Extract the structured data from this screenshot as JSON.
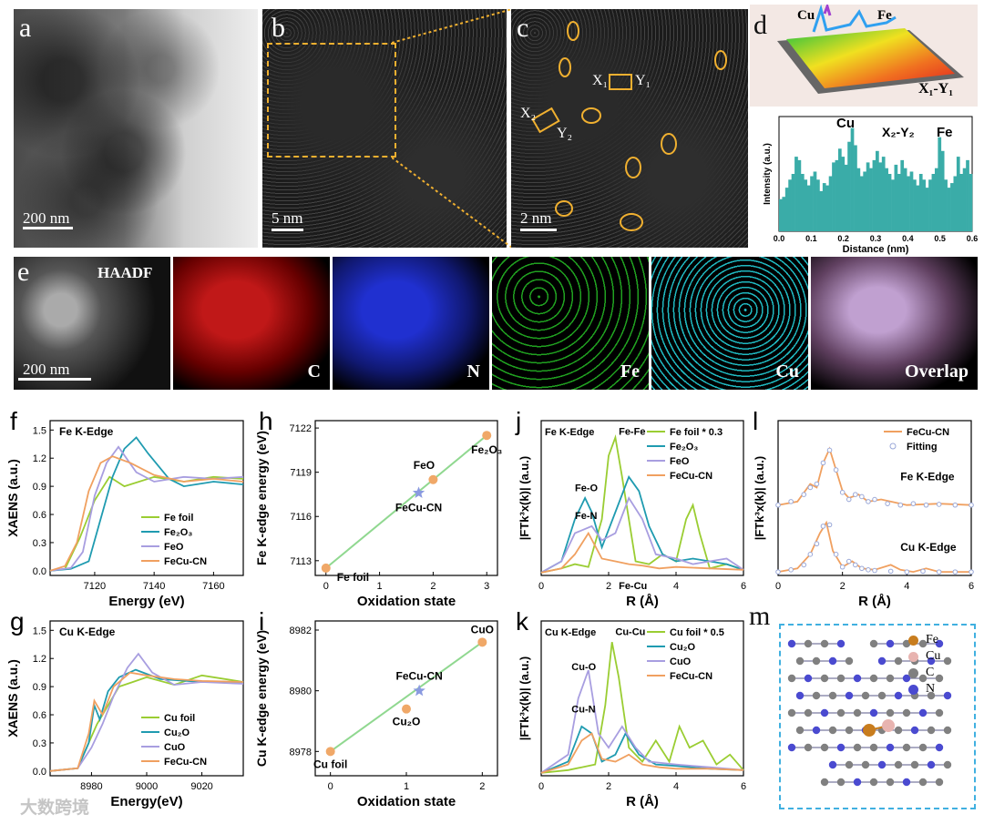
{
  "panels": {
    "a": {
      "letter": "a",
      "scale": "200 nm"
    },
    "b": {
      "letter": "b",
      "scale": "5 nm"
    },
    "c": {
      "letter": "c",
      "scale": "2 nm",
      "label1": "X₁",
      "label2": "Y₁",
      "label3": "X₂",
      "label4": "Y₂"
    },
    "d": {
      "letter": "d",
      "cu": "Cu",
      "fe": "Fe",
      "xy": "X₁-Y₁"
    },
    "e": {
      "letter": "e",
      "haadf": "HAADF",
      "scale": "200 nm",
      "maps": [
        "C",
        "N",
        "Fe",
        "Cu",
        "Overlap"
      ]
    }
  },
  "chart_data": [
    {
      "id": "d2",
      "type": "bar",
      "title": "X₂-Y₂",
      "annotations": [
        "Cu",
        "Fe"
      ],
      "xlabel": "Distance (nm)",
      "ylabel": "Intensity (a.u.)",
      "xlim": [
        0,
        0.6
      ],
      "xticks": [
        "0.0",
        "0.1",
        "0.2",
        "0.3",
        "0.4",
        "0.5",
        "0.6"
      ],
      "values": [
        0.28,
        0.3,
        0.38,
        0.45,
        0.5,
        0.65,
        0.62,
        0.5,
        0.45,
        0.4,
        0.48,
        0.52,
        0.45,
        0.35,
        0.42,
        0.4,
        0.48,
        0.6,
        0.62,
        0.72,
        0.65,
        0.58,
        0.78,
        0.9,
        0.75,
        0.55,
        0.48,
        0.52,
        0.6,
        0.55,
        0.62,
        0.7,
        0.6,
        0.65,
        0.55,
        0.5,
        0.45,
        0.58,
        0.5,
        0.62,
        0.55,
        0.48,
        0.52,
        0.45,
        0.4,
        0.5,
        0.45,
        0.38,
        0.45,
        0.5,
        0.55,
        0.82,
        0.7,
        0.45,
        0.38,
        0.42,
        0.48,
        0.65,
        0.5,
        0.55,
        0.62,
        0.5
      ]
    },
    {
      "id": "f",
      "letter": "f",
      "type": "line",
      "title": "Fe K-Edge",
      "xlabel": "Energy (eV)",
      "ylabel": "XAENS (a.u.)",
      "xlim": [
        7105,
        7170
      ],
      "ylim": [
        -0.05,
        1.6
      ],
      "xticks": [
        "7120",
        "7140",
        "7160"
      ],
      "yticks": [
        "0.0",
        "0.3",
        "0.6",
        "0.9",
        "1.2",
        "1.5"
      ],
      "series": [
        {
          "name": "Fe foil",
          "color": "#9acd32",
          "x": [
            7105,
            7110,
            7112,
            7115,
            7120,
            7125,
            7130,
            7140,
            7150,
            7160,
            7170
          ],
          "y": [
            0,
            0.02,
            0.15,
            0.35,
            0.75,
            1.0,
            0.9,
            1.0,
            0.95,
            1.0,
            0.98
          ]
        },
        {
          "name": "Fe₂O₃",
          "color": "#1f9bb0",
          "x": [
            7105,
            7112,
            7118,
            7122,
            7126,
            7130,
            7134,
            7138,
            7145,
            7150,
            7160,
            7170
          ],
          "y": [
            0,
            0.02,
            0.1,
            0.55,
            1.0,
            1.3,
            1.42,
            1.25,
            0.98,
            0.9,
            0.95,
            0.92
          ]
        },
        {
          "name": "FeO",
          "color": "#a89ee0",
          "x": [
            7105,
            7112,
            7116,
            7120,
            7124,
            7128,
            7134,
            7140,
            7150,
            7160,
            7170
          ],
          "y": [
            0,
            0.03,
            0.2,
            0.8,
            1.15,
            1.32,
            1.05,
            0.95,
            1.0,
            0.98,
            1.0
          ]
        },
        {
          "name": "FeCu-CN",
          "color": "#f0a060",
          "x": [
            7105,
            7110,
            7114,
            7118,
            7122,
            7126,
            7132,
            7140,
            7150,
            7160,
            7170
          ],
          "y": [
            0,
            0.05,
            0.3,
            0.85,
            1.15,
            1.22,
            1.15,
            1.02,
            0.95,
            0.98,
            0.95
          ]
        }
      ]
    },
    {
      "id": "g",
      "letter": "g",
      "type": "line",
      "title": "Cu K-Edge",
      "xlabel": "Energy(eV)",
      "ylabel": "XAENS (a.u.)",
      "xlim": [
        8965,
        9035
      ],
      "ylim": [
        -0.05,
        1.6
      ],
      "xticks": [
        "8980",
        "9000",
        "9020"
      ],
      "yticks": [
        "0.0",
        "0.3",
        "0.6",
        "0.9",
        "1.2",
        "1.5"
      ],
      "series": [
        {
          "name": "Cu foil",
          "color": "#9acd32",
          "x": [
            8965,
            8975,
            8979,
            8982,
            8986,
            8990,
            8995,
            9000,
            9010,
            9020,
            9035
          ],
          "y": [
            0,
            0.03,
            0.3,
            0.5,
            0.7,
            0.9,
            0.95,
            1.0,
            0.92,
            1.02,
            0.95
          ]
        },
        {
          "name": "Cu₂O",
          "color": "#1f9bb0",
          "x": [
            8965,
            8975,
            8979,
            8981,
            8983,
            8986,
            8990,
            8996,
            9005,
            9020,
            9035
          ],
          "y": [
            0,
            0.03,
            0.3,
            0.7,
            0.55,
            0.85,
            1.0,
            1.08,
            0.98,
            0.95,
            0.95
          ]
        },
        {
          "name": "CuO",
          "color": "#a89ee0",
          "x": [
            8965,
            8975,
            8980,
            8984,
            8988,
            8993,
            8997,
            9002,
            9010,
            9020,
            9035
          ],
          "y": [
            0,
            0.03,
            0.25,
            0.5,
            0.8,
            1.1,
            1.25,
            1.05,
            0.92,
            0.95,
            0.93
          ]
        },
        {
          "name": "FeCu-CN",
          "color": "#f0a060",
          "x": [
            8965,
            8975,
            8979,
            8981,
            8984,
            8988,
            8994,
            9000,
            9010,
            9020,
            9035
          ],
          "y": [
            0,
            0.03,
            0.4,
            0.75,
            0.6,
            0.9,
            1.05,
            1.02,
            0.98,
            0.96,
            0.95
          ]
        }
      ]
    },
    {
      "id": "h",
      "letter": "h",
      "type": "scatter",
      "xlabel": "Oxidation state",
      "ylabel": "Fe K-edge energy (eV)",
      "xlim": [
        -0.2,
        3.2
      ],
      "ylim": [
        7112,
        7122.5
      ],
      "xticks": [
        "0",
        "1",
        "2",
        "3"
      ],
      "yticks": [
        "7113",
        "7116",
        "7119",
        "7122"
      ],
      "points": [
        {
          "name": "Fe foil",
          "x": 0,
          "y": 7112.5
        },
        {
          "name": "FeO",
          "x": 2,
          "y": 7118.5
        },
        {
          "name": "Fe₂O₃",
          "x": 3,
          "y": 7121.5
        },
        {
          "name": "FeCu-CN",
          "x": 1.73,
          "y": 7117.6,
          "star": true
        }
      ],
      "fit": [
        [
          0,
          7112.5
        ],
        [
          3,
          7121.5
        ]
      ]
    },
    {
      "id": "i",
      "letter": "i",
      "type": "scatter",
      "xlabel": "Oxidation state",
      "ylabel": "Cu K-edge energy (eV)",
      "xlim": [
        -0.2,
        2.2
      ],
      "ylim": [
        8977.2,
        8982.3
      ],
      "xticks": [
        "0",
        "1",
        "2"
      ],
      "yticks": [
        "8978",
        "8980",
        "8982"
      ],
      "points": [
        {
          "name": "Cu foil",
          "x": 0,
          "y": 8978
        },
        {
          "name": "Cu₂O",
          "x": 1,
          "y": 8979.4
        },
        {
          "name": "CuO",
          "x": 2,
          "y": 8981.6
        },
        {
          "name": "FeCu-CN",
          "x": 1.17,
          "y": 8980,
          "star": true
        }
      ],
      "fit": [
        [
          0,
          8978
        ],
        [
          2,
          8981.6
        ]
      ]
    },
    {
      "id": "j",
      "letter": "j",
      "type": "line",
      "title": "Fe K-Edge",
      "xlabel": "R (Å)",
      "ylabel": "|FTk³x(k)| (a.u.)",
      "xlim": [
        0,
        6
      ],
      "ylim": [
        0,
        1.1
      ],
      "xticks": [
        "0",
        "2",
        "4",
        "6"
      ],
      "annotations": [
        "Fe-Fe",
        "Fe-O",
        "Fe-N",
        "Fe-Cu"
      ],
      "series": [
        {
          "name": "Fe foil * 0.3",
          "color": "#9acd32",
          "x": [
            0,
            0.6,
            1.0,
            1.4,
            1.8,
            2.0,
            2.2,
            2.4,
            2.8,
            3.2,
            3.6,
            4.0,
            4.3,
            4.5,
            4.7,
            5.0,
            5.5,
            6
          ],
          "y": [
            0.02,
            0.05,
            0.08,
            0.06,
            0.4,
            0.85,
            0.98,
            0.7,
            0.1,
            0.08,
            0.15,
            0.1,
            0.4,
            0.5,
            0.3,
            0.05,
            0.08,
            0.04
          ]
        },
        {
          "name": "Fe₂O₃",
          "color": "#1f9bb0",
          "x": [
            0,
            0.6,
            1.0,
            1.3,
            1.5,
            1.8,
            2.2,
            2.6,
            2.9,
            3.2,
            3.6,
            4.0,
            4.5,
            5.0,
            5.5,
            6
          ],
          "y": [
            0.02,
            0.1,
            0.4,
            0.55,
            0.45,
            0.2,
            0.45,
            0.7,
            0.6,
            0.35,
            0.15,
            0.1,
            0.12,
            0.1,
            0.08,
            0.04
          ]
        },
        {
          "name": "FeO",
          "color": "#a89ee0",
          "x": [
            0,
            0.6,
            1.0,
            1.5,
            1.8,
            2.2,
            2.6,
            3.0,
            3.4,
            4.0,
            4.5,
            5.0,
            5.5,
            6
          ],
          "y": [
            0.02,
            0.1,
            0.3,
            0.35,
            0.25,
            0.3,
            0.55,
            0.4,
            0.15,
            0.12,
            0.08,
            0.1,
            0.12,
            0.04
          ]
        },
        {
          "name": "FeCu-CN",
          "color": "#f0a060",
          "x": [
            0,
            0.6,
            1.0,
            1.4,
            1.8,
            2.2,
            2.6,
            3.0,
            3.5,
            4.0,
            5.0,
            6
          ],
          "y": [
            0.02,
            0.05,
            0.15,
            0.3,
            0.12,
            0.1,
            0.08,
            0.07,
            0.05,
            0.06,
            0.05,
            0.04
          ]
        }
      ]
    },
    {
      "id": "k",
      "letter": "k",
      "type": "line",
      "title": "Cu K-Edge",
      "xlabel": "R (Å)",
      "ylabel": "|FTk³x(k)| (a.u.)",
      "xlim": [
        0,
        6
      ],
      "ylim": [
        0,
        1.1
      ],
      "xticks": [
        "0",
        "2",
        "4",
        "6"
      ],
      "annotations": [
        "Cu-Cu",
        "Cu-O",
        "Cu-N"
      ],
      "series": [
        {
          "name": "Cu foil * 0.5",
          "color": "#9acd32",
          "x": [
            0,
            0.8,
            1.2,
            1.6,
            1.9,
            2.1,
            2.3,
            2.6,
            3.0,
            3.4,
            3.8,
            4.1,
            4.4,
            4.8,
            5.2,
            5.6,
            6
          ],
          "y": [
            0.02,
            0.04,
            0.06,
            0.08,
            0.5,
            0.95,
            0.7,
            0.2,
            0.1,
            0.25,
            0.1,
            0.35,
            0.2,
            0.25,
            0.08,
            0.15,
            0.04
          ]
        },
        {
          "name": "Cu₂O",
          "color": "#1f9bb0",
          "x": [
            0,
            0.8,
            1.2,
            1.5,
            1.8,
            2.2,
            2.5,
            2.9,
            3.4,
            4.0,
            5.0,
            6
          ],
          "y": [
            0.02,
            0.1,
            0.35,
            0.3,
            0.1,
            0.15,
            0.3,
            0.15,
            0.08,
            0.07,
            0.05,
            0.04
          ]
        },
        {
          "name": "CuO",
          "color": "#a89ee0",
          "x": [
            0,
            0.8,
            1.1,
            1.4,
            1.7,
            2.0,
            2.4,
            2.8,
            3.2,
            4.0,
            5.0,
            6
          ],
          "y": [
            0.02,
            0.15,
            0.55,
            0.75,
            0.3,
            0.2,
            0.35,
            0.2,
            0.1,
            0.08,
            0.06,
            0.04
          ]
        },
        {
          "name": "FeCu-CN",
          "color": "#f0a060",
          "x": [
            0,
            0.8,
            1.2,
            1.5,
            1.8,
            2.2,
            2.6,
            3.0,
            3.5,
            4.0,
            5.0,
            6
          ],
          "y": [
            0.02,
            0.08,
            0.25,
            0.3,
            0.12,
            0.1,
            0.15,
            0.08,
            0.06,
            0.05,
            0.05,
            0.04
          ]
        }
      ]
    },
    {
      "id": "l",
      "letter": "l",
      "type": "line",
      "xlabel": "R (Å)",
      "ylabel": "|FTk³x(k)| (a.u.)",
      "xlim": [
        0,
        6
      ],
      "ylim": [
        0,
        2.2
      ],
      "xticks": [
        "0",
        "2",
        "4",
        "6"
      ],
      "annotations": [
        "Fe K-Edge",
        "Cu K-Edge"
      ],
      "series": [
        {
          "name": "FeCu-CN",
          "color": "#f0a060",
          "x": [
            0,
            0.6,
            1.0,
            1.2,
            1.4,
            1.6,
            1.8,
            2.0,
            2.2,
            2.5,
            2.8,
            3.2,
            4,
            5,
            6
          ],
          "y": [
            1.0,
            1.05,
            1.3,
            1.25,
            1.6,
            1.8,
            1.5,
            1.2,
            1.1,
            1.15,
            1.05,
            1.08,
            1.0,
            1.02,
            1.0
          ]
        },
        {
          "name": "Fitting",
          "color": "#9aa8d8",
          "marker": true,
          "x": [
            0,
            0.4,
            0.8,
            1.0,
            1.2,
            1.4,
            1.6,
            1.8,
            2.0,
            2.2,
            2.4,
            2.6,
            2.8,
            3.0,
            3.4,
            3.8,
            4.2,
            4.6,
            5.0,
            5.5,
            6
          ],
          "y": [
            1.0,
            1.05,
            1.15,
            1.25,
            1.3,
            1.6,
            1.78,
            1.5,
            1.18,
            1.08,
            1.15,
            1.12,
            1.05,
            1.08,
            1.02,
            1.0,
            1.02,
            1.0,
            1.01,
            1.0,
            1.0
          ]
        },
        {
          "name": "_cu",
          "color": "#f0a060",
          "x": [
            0,
            0.6,
            1.0,
            1.3,
            1.5,
            1.7,
            2.0,
            2.3,
            2.6,
            3.0,
            3.5,
            3.8,
            4.2,
            4.6,
            5,
            6
          ],
          "y": [
            0.05,
            0.1,
            0.3,
            0.6,
            0.75,
            0.35,
            0.12,
            0.2,
            0.1,
            0.08,
            0.15,
            0.08,
            0.05,
            0.1,
            0.05,
            0.05
          ]
        },
        {
          "name": "_cufit",
          "color": "#9aa8d8",
          "marker": true,
          "x": [
            0,
            0.4,
            0.8,
            1.0,
            1.2,
            1.4,
            1.6,
            1.8,
            2.0,
            2.2,
            2.4,
            2.6,
            2.8,
            3.0,
            3.5,
            4,
            4.5,
            5,
            5.5,
            6
          ],
          "y": [
            0.05,
            0.08,
            0.15,
            0.3,
            0.45,
            0.7,
            0.72,
            0.3,
            0.12,
            0.2,
            0.15,
            0.1,
            0.08,
            0.07,
            0.06,
            0.05,
            0.06,
            0.05,
            0.05,
            0.05
          ]
        }
      ]
    }
  ],
  "structure": {
    "letter": "m",
    "legend": [
      {
        "name": "Fe",
        "color": "#c87d1e"
      },
      {
        "name": "Cu",
        "color": "#e8b4b0"
      },
      {
        "name": "C",
        "color": "#808080"
      },
      {
        "name": "N",
        "color": "#4a4ad0"
      }
    ]
  },
  "watermark": "大数跨境"
}
